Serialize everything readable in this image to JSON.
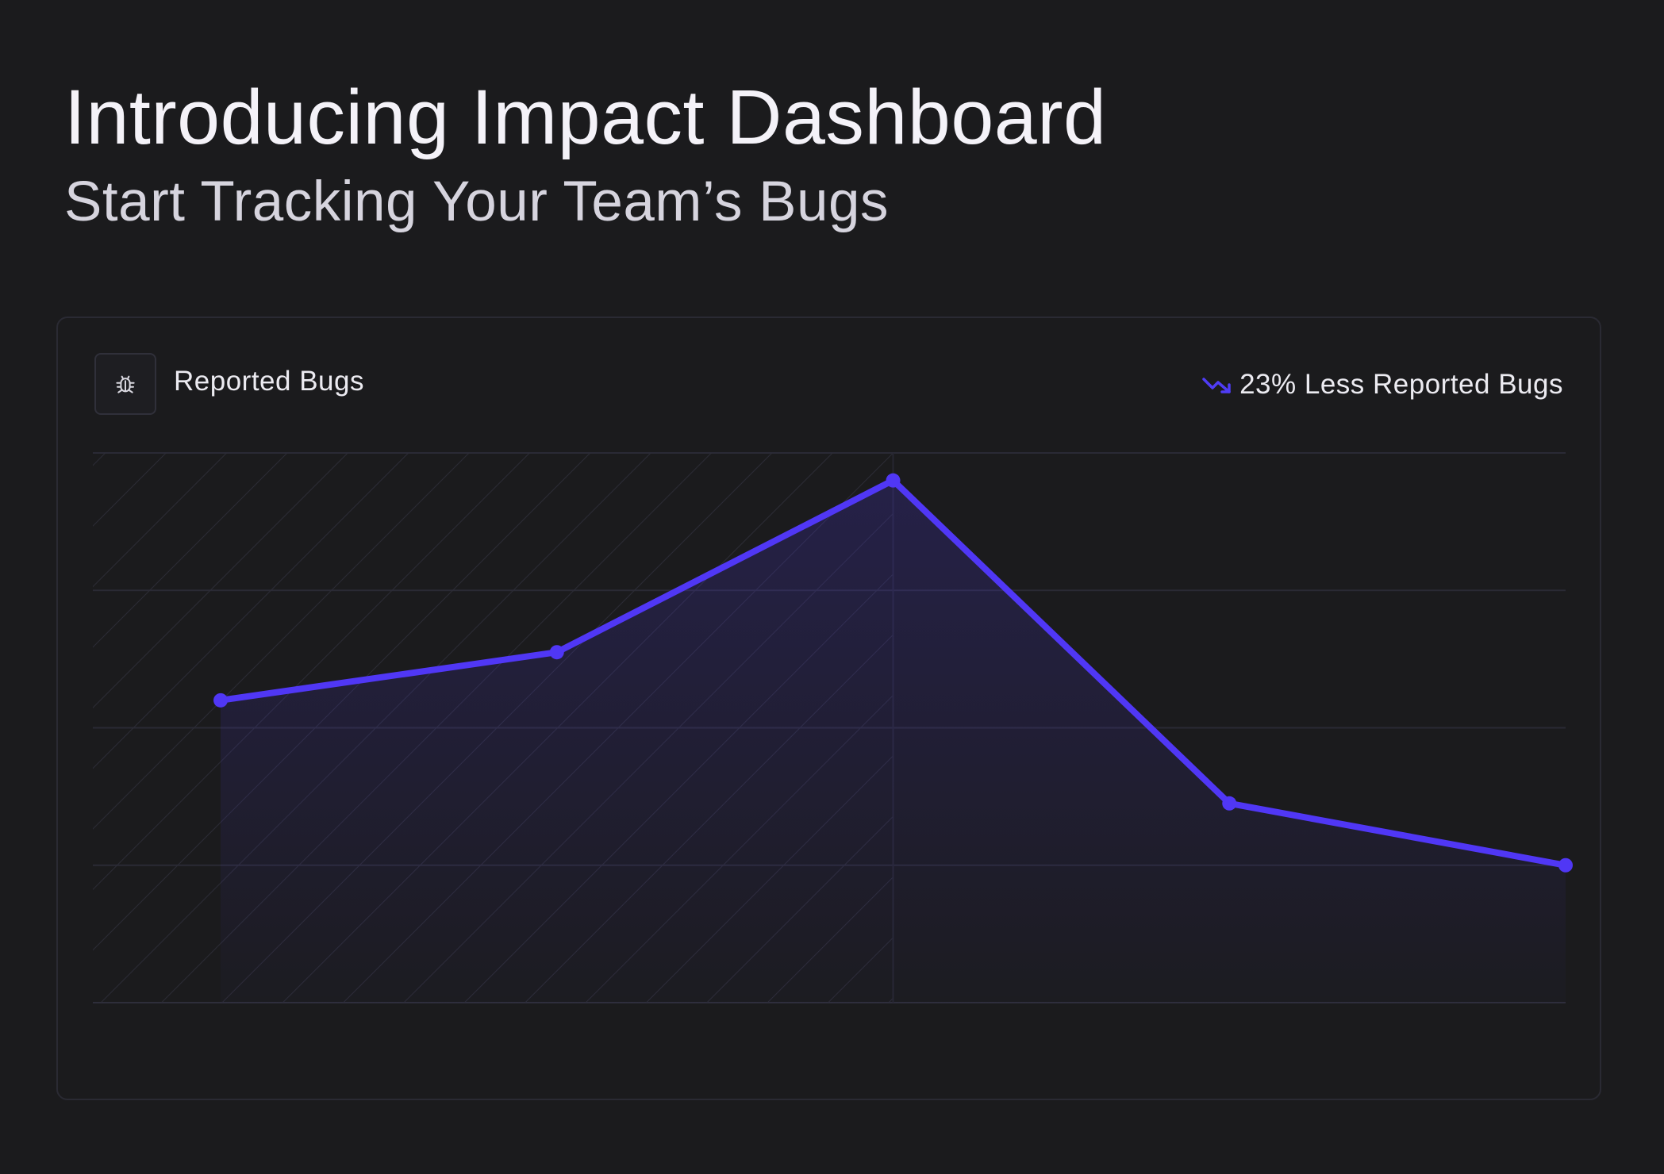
{
  "header": {
    "title": "Introducing Impact Dashboard",
    "subtitle": "Start Tracking Your Team’s Bugs"
  },
  "card": {
    "label": "Reported Bugs",
    "label_icon": "bug-icon",
    "trend": {
      "icon": "trending-down-icon",
      "text": "23% Less Reported Bugs",
      "color": "#4f3cf5"
    }
  },
  "chart_data": {
    "type": "line",
    "x": [
      1,
      2,
      3,
      4,
      5
    ],
    "values": [
      4.4,
      5.1,
      7.6,
      2.9,
      2.0
    ],
    "ylim": [
      0,
      8
    ],
    "highlight_range": [
      1,
      3
    ],
    "grid": true,
    "line_color": "#5037f5"
  }
}
